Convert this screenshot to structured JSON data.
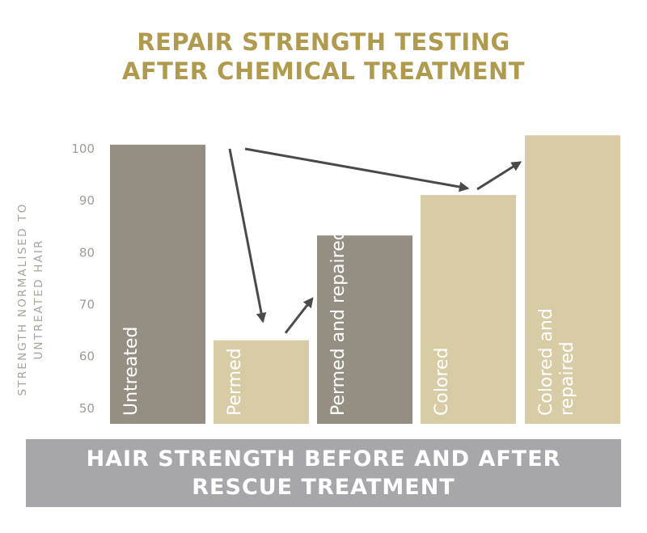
{
  "title": [
    "REPAIR STRENGTH TESTING",
    "AFTER CHEMICAL TREATMENT"
  ],
  "ylabel": [
    "STRENGTH NORMALISED TO",
    "UNTREATED HAIR"
  ],
  "banner": [
    "HAIR STRENGTH BEFORE AND AFTER",
    "RESCUE TREATMENT"
  ],
  "colors": {
    "title": "#b09a4e",
    "dark_bar": "#958e82",
    "light_bar": "#d8cca6",
    "axis_text": "#a09c92",
    "banner": "#a6a6ab",
    "arrow": "#4a4a4a"
  },
  "chart_data": {
    "type": "bar",
    "title": "REPAIR STRENGTH TESTING AFTER CHEMICAL TREATMENT",
    "ylabel": "STRENGTH NORMALISED TO UNTREATED HAIR",
    "xlabel": "HAIR STRENGTH BEFORE AND AFTER RESCUE TREATMENT",
    "ylim": [
      47,
      104
    ],
    "yticks": [
      50,
      60,
      70,
      80,
      90,
      100
    ],
    "grid": false,
    "categories": [
      [
        "Untreated"
      ],
      [
        "Permed"
      ],
      [
        "Permed and repaired"
      ],
      [
        "Colored"
      ],
      [
        "Colored and",
        "repaired"
      ]
    ],
    "values": [
      100.8,
      63.1,
      83.3,
      91.1,
      102.6
    ],
    "bar_colors": [
      "dark",
      "light",
      "dark",
      "light",
      "light"
    ],
    "annotations": [
      {
        "type": "arrow",
        "from": "Untreated",
        "to": "Permed"
      },
      {
        "type": "arrow",
        "from": "Permed",
        "to": "Permed and repaired"
      },
      {
        "type": "arrow",
        "from": "Untreated",
        "to": "Colored"
      },
      {
        "type": "arrow",
        "from": "Colored",
        "to": "Colored and repaired"
      }
    ]
  }
}
